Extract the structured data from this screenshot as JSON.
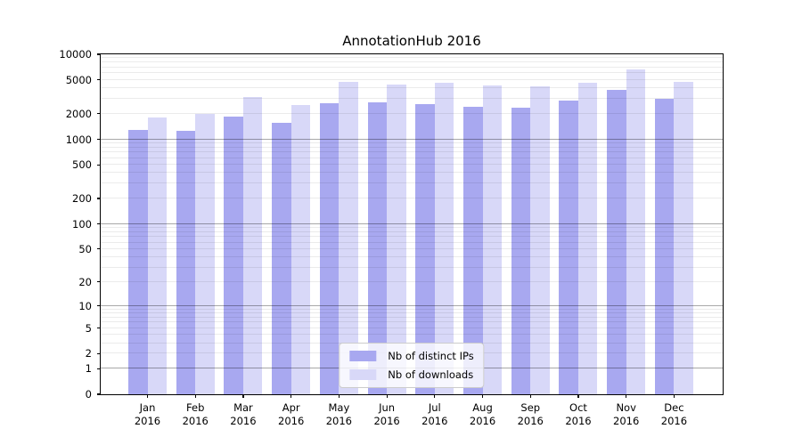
{
  "title": "AnnotationHub 2016",
  "axes": {
    "y_tick_labels": [
      10000,
      5000,
      2000,
      1000,
      500,
      200,
      100,
      50,
      20,
      10,
      5,
      2,
      1,
      0
    ],
    "x_year_line": "2016"
  },
  "colors": {
    "bar_distinct_ips": "#a8a8f0",
    "bar_downloads": "#d8d8f8",
    "major_grid": "rgba(0,0,0,0.34)",
    "minor_grid": "rgba(0,0,0,0.08)"
  },
  "legend": {
    "items": [
      {
        "label": "Nb of distinct IPs",
        "color": "#a8a8f0"
      },
      {
        "label": "Nb of downloads",
        "color": "#d8d8f8"
      }
    ]
  },
  "chart_data": {
    "type": "bar",
    "title": "AnnotationHub 2016",
    "categories": [
      "Jan",
      "Feb",
      "Mar",
      "Apr",
      "May",
      "Jun",
      "Jul",
      "Aug",
      "Sep",
      "Oct",
      "Nov",
      "Dec"
    ],
    "category_year": "2016",
    "series": [
      {
        "name": "Nb of distinct IPs",
        "color": "#a8a8f0",
        "values": [
          1290,
          1260,
          1840,
          1570,
          2650,
          2700,
          2570,
          2430,
          2370,
          2870,
          3800,
          3010
        ]
      },
      {
        "name": "Nb of downloads",
        "color": "#d8d8f8",
        "values": [
          1820,
          1990,
          3120,
          2510,
          4690,
          4400,
          4580,
          4330,
          4160,
          4650,
          6580,
          4690
        ]
      }
    ],
    "yscale": "log10(value+1)",
    "ylim": [
      0,
      10000
    ],
    "yticks": [
      0,
      1,
      2,
      5,
      10,
      20,
      50,
      100,
      200,
      500,
      1000,
      2000,
      5000,
      10000
    ],
    "grid": "horizontal",
    "legend_position": "lower center"
  }
}
